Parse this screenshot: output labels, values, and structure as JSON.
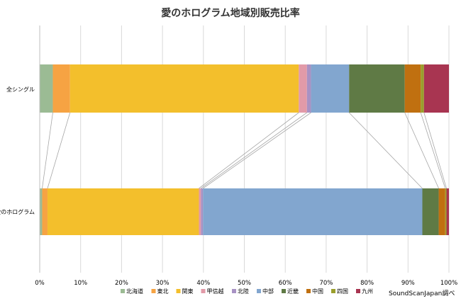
{
  "chart_data": {
    "type": "bar",
    "orientation": "horizontal",
    "stacked": "percent",
    "title": "愛のホログラム地域別販売比率",
    "categories": [
      "全シングル",
      "愛のホログラム"
    ],
    "series": [
      {
        "name": "北海道",
        "color": "#9bbb94",
        "values": [
          3.2,
          0.6
        ]
      },
      {
        "name": "東北",
        "color": "#f6a343",
        "values": [
          4.2,
          1.3
        ]
      },
      {
        "name": "関東",
        "color": "#f3bf2c",
        "values": [
          55.9,
          37.0
        ]
      },
      {
        "name": "甲信越",
        "color": "#e29aa8",
        "values": [
          2.0,
          0.5
        ]
      },
      {
        "name": "北陸",
        "color": "#a892c4",
        "values": [
          1.0,
          0.5
        ]
      },
      {
        "name": "中部",
        "color": "#82a6cf",
        "values": [
          9.3,
          53.6
        ]
      },
      {
        "name": "近畿",
        "color": "#5f7a45",
        "values": [
          13.6,
          4.0
        ]
      },
      {
        "name": "中国",
        "color": "#c07010",
        "values": [
          3.9,
          1.6
        ]
      },
      {
        "name": "四国",
        "color": "#9a9e2c",
        "values": [
          0.8,
          0.3
        ]
      },
      {
        "name": "九州",
        "color": "#a83551",
        "values": [
          6.1,
          0.6
        ]
      }
    ],
    "xlim": [
      0,
      100
    ],
    "x_ticks": [
      "0%",
      "10%",
      "20%",
      "30%",
      "40%",
      "50%",
      "60%",
      "70%",
      "80%",
      "90%",
      "100%"
    ],
    "grid": true,
    "legend_position": "bottom",
    "source_note": "SoundScanJapan調べ"
  }
}
